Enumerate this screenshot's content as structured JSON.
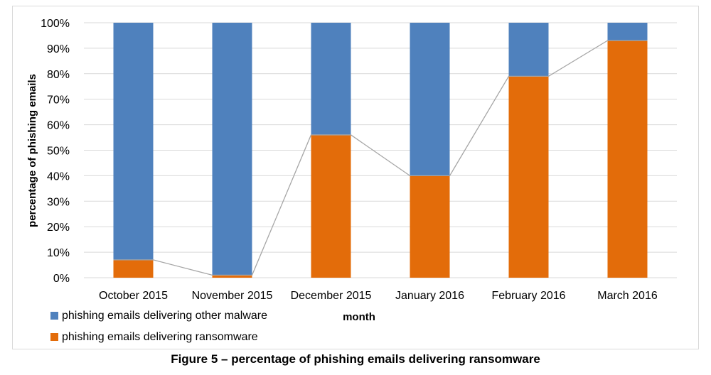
{
  "chart_data": {
    "type": "bar",
    "stacked": true,
    "categories": [
      "October 2015",
      "November 2015",
      "December 2015",
      "January 2016",
      "February 2016",
      "March 2016"
    ],
    "series": [
      {
        "name": "phishing emails delivering ransomware",
        "values": [
          7,
          1,
          56,
          40,
          79,
          93
        ],
        "color": "#e36c0a"
      },
      {
        "name": "phishing emails delivering other malware",
        "values": [
          93,
          99,
          44,
          60,
          21,
          7
        ],
        "color": "#4f81bd"
      }
    ],
    "trend_line": {
      "series": "phishing emails delivering ransomware",
      "color": "#a6a6a6"
    },
    "xlabel": "month",
    "ylabel": "percentage of phishing emails",
    "ylim": [
      0,
      100
    ],
    "yticks": [
      "0%",
      "10%",
      "20%",
      "30%",
      "40%",
      "50%",
      "60%",
      "70%",
      "80%",
      "90%",
      "100%"
    ],
    "grid": true,
    "legend_position": "bottom-left"
  },
  "caption": "Figure 5 – percentage of phishing emails delivering ransomware"
}
